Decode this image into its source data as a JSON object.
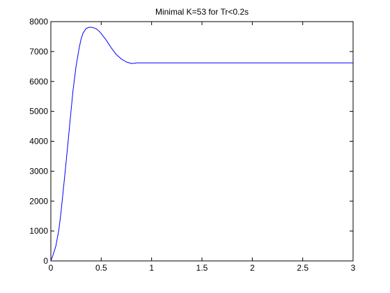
{
  "chart_data": {
    "type": "line",
    "title": "Minimal K=53 for Tr<0.2s",
    "xlabel": "",
    "ylabel": "",
    "xlim": [
      0,
      3
    ],
    "ylim": [
      0,
      8000
    ],
    "grid": false,
    "x_ticks": [
      0,
      0.5,
      1,
      1.5,
      2,
      2.5,
      3
    ],
    "x_tick_labels": [
      "0",
      "0.5",
      "1",
      "1.5",
      "2",
      "2.5",
      "3"
    ],
    "y_ticks": [
      0,
      1000,
      2000,
      3000,
      4000,
      5000,
      6000,
      7000,
      8000
    ],
    "y_tick_labels": [
      "0",
      "1000",
      "2000",
      "3000",
      "4000",
      "5000",
      "6000",
      "7000",
      "8000"
    ],
    "series": [
      {
        "color": "#0000ff",
        "x": [
          0,
          0.02,
          0.05,
          0.08,
          0.1,
          0.12,
          0.15,
          0.18,
          0.2,
          0.22,
          0.25,
          0.28,
          0.3,
          0.32,
          0.35,
          0.38,
          0.4,
          0.42,
          0.45,
          0.48,
          0.5,
          0.55,
          0.6,
          0.65,
          0.7,
          0.75,
          0.8,
          0.83,
          0.85,
          0.9,
          1.0,
          1.5,
          2.0,
          2.5,
          3.0
        ],
        "values": [
          0,
          180,
          500,
          1050,
          1600,
          2250,
          3250,
          4300,
          5000,
          5700,
          6500,
          7100,
          7420,
          7620,
          7770,
          7810,
          7810,
          7800,
          7760,
          7680,
          7600,
          7380,
          7120,
          6900,
          6750,
          6650,
          6600,
          6610,
          6620,
          6620,
          6620,
          6620,
          6620,
          6620,
          6620
        ]
      }
    ]
  }
}
